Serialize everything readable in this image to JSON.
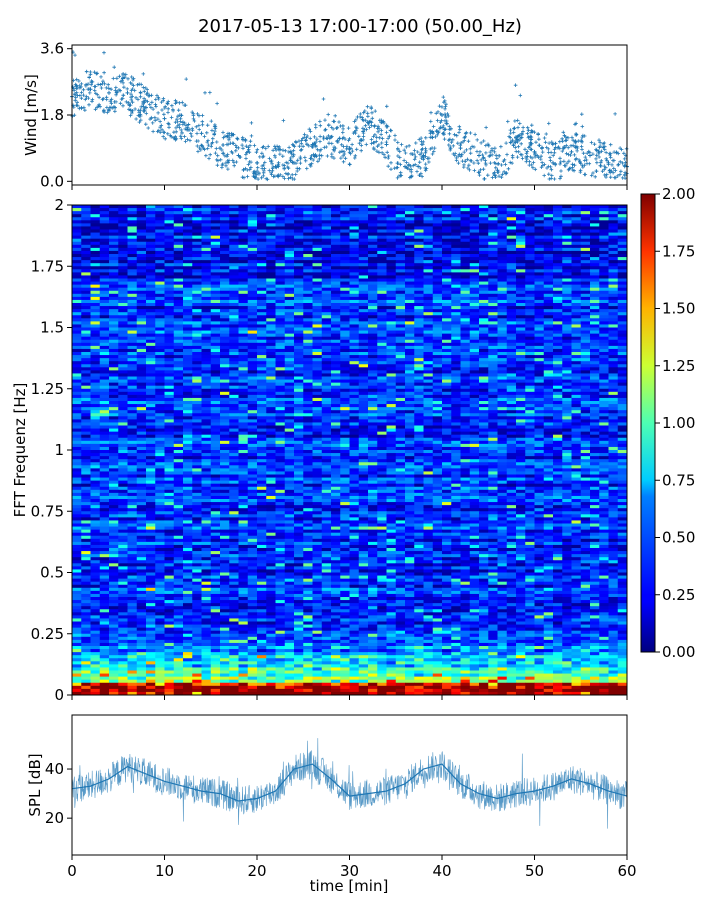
{
  "figure": {
    "title": "2017-05-13 17:00-17:00 (50.00_Hz)"
  },
  "chart_data": [
    {
      "type": "scatter",
      "panel": "wind",
      "ylabel": "Wind [m/s]",
      "ylim": [
        -0.1,
        3.7
      ],
      "yticks": [
        0.0,
        1.8,
        3.6
      ],
      "ytick_labels": [
        "0.0",
        "1.8",
        "3.6"
      ],
      "xlim": [
        0,
        60
      ],
      "marker": "+",
      "color": "#1f77b4",
      "x": [
        0,
        2,
        4,
        6,
        8,
        10,
        12,
        14,
        16,
        18,
        20,
        22,
        24,
        26,
        28,
        30,
        32,
        34,
        36,
        38,
        40,
        42,
        44,
        46,
        48,
        50,
        52,
        54,
        56,
        58,
        60
      ],
      "y": [
        2.3,
        2.5,
        2.4,
        2.4,
        2.0,
        1.7,
        1.6,
        1.3,
        0.9,
        0.7,
        0.5,
        0.4,
        0.5,
        1.0,
        1.2,
        0.9,
        1.6,
        1.0,
        0.4,
        0.7,
        1.8,
        0.9,
        0.7,
        0.3,
        1.2,
        0.8,
        0.5,
        0.8,
        0.7,
        0.5,
        0.4
      ]
    },
    {
      "type": "heatmap",
      "panel": "spectrogram",
      "ylabel": "FFT Frequenz [Hz]",
      "ylim": [
        0,
        2
      ],
      "yticks": [
        0,
        0.25,
        0.5,
        0.75,
        1,
        1.25,
        1.5,
        1.75,
        2
      ],
      "ytick_labels": [
        "0",
        "0.25",
        "0.5",
        "0.75",
        "1",
        "1.25",
        "1.5",
        "1.75",
        "2"
      ],
      "xlim": [
        0,
        60
      ],
      "colormap": "jet",
      "colorbar": {
        "ticks": [
          "0.00",
          "0.25",
          "0.50",
          "0.75",
          "1.00",
          "1.25",
          "1.50",
          "1.75",
          "2.00"
        ],
        "range": [
          0,
          2
        ]
      }
    },
    {
      "type": "line",
      "panel": "spl",
      "ylabel": "SPL [dB]",
      "xlabel": "time [min]",
      "ylim": [
        5,
        62
      ],
      "yticks": [
        20,
        40
      ],
      "ytick_labels": [
        "20",
        "40"
      ],
      "xlim": [
        0,
        60
      ],
      "xticks": [
        0,
        10,
        20,
        30,
        40,
        50,
        60
      ],
      "xtick_labels": [
        "0",
        "10",
        "20",
        "30",
        "40",
        "50",
        "60"
      ],
      "color": "#1f77b4",
      "x": [
        0,
        2,
        4,
        6,
        8,
        10,
        12,
        14,
        16,
        18,
        20,
        22,
        24,
        26,
        28,
        30,
        32,
        34,
        36,
        38,
        40,
        42,
        44,
        46,
        48,
        50,
        52,
        54,
        56,
        58,
        60
      ],
      "y": [
        32,
        33,
        36,
        41,
        38,
        35,
        33,
        31,
        30,
        27,
        28,
        31,
        40,
        42,
        36,
        29,
        30,
        31,
        34,
        40,
        42,
        34,
        30,
        28,
        30,
        31,
        33,
        36,
        34,
        31,
        29
      ]
    }
  ]
}
